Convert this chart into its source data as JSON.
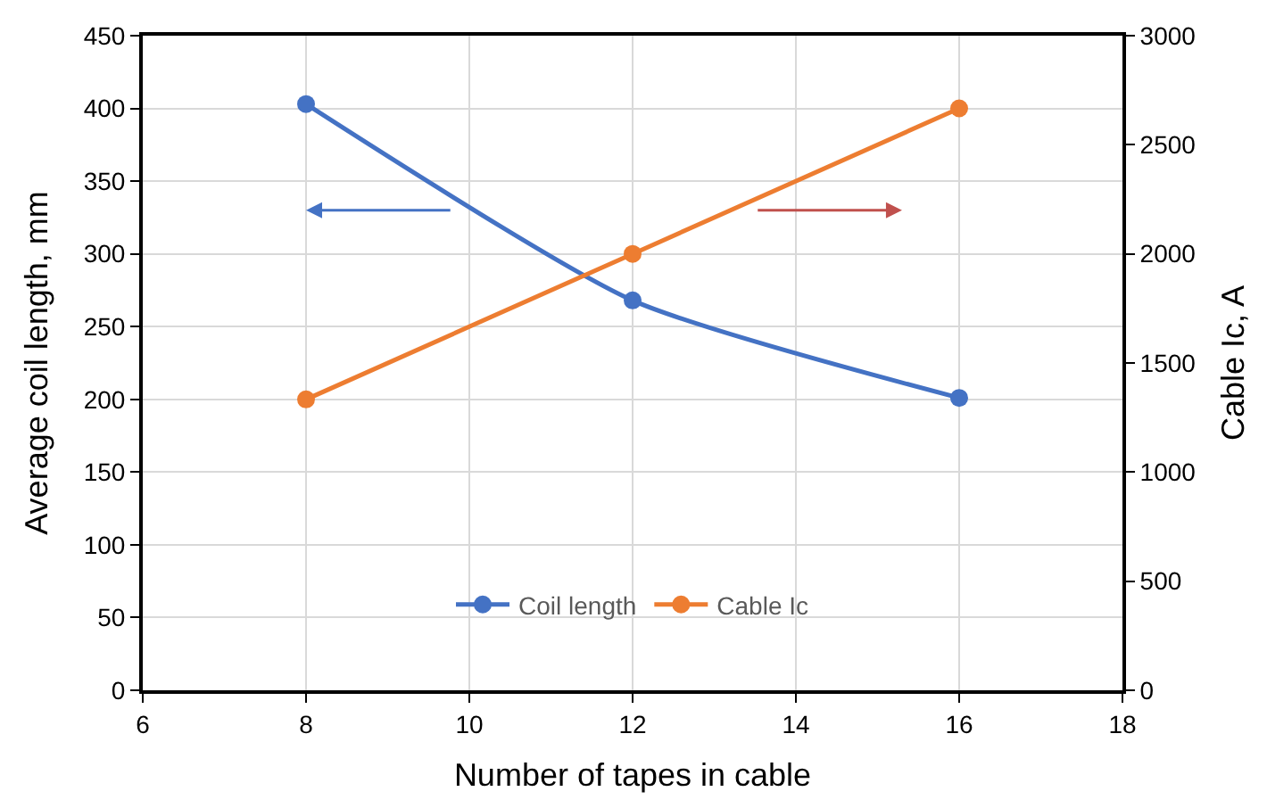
{
  "chart_data": {
    "type": "line",
    "xlabel": "Number of tapes in cable",
    "ylabel": "Average coil length, mm",
    "y2label": "Cable Ic, A",
    "x": [
      8,
      12,
      16
    ],
    "series": [
      {
        "name": "Coil length",
        "color": "#4472c4",
        "values": [
          403,
          268,
          201
        ]
      },
      {
        "name": "Cable Ic",
        "color": "#ed7d31",
        "values": [
          1333,
          2000,
          2667
        ],
        "axis": "y2"
      }
    ],
    "xlim": [
      6,
      18
    ],
    "xticks": [
      6,
      8,
      10,
      12,
      14,
      16,
      18
    ],
    "ylim": [
      0,
      450
    ],
    "yticks": [
      0,
      50,
      100,
      150,
      200,
      250,
      300,
      350,
      400,
      450
    ],
    "y2lim": [
      0,
      3000
    ],
    "y2ticks": [
      0,
      500,
      1000,
      1500,
      2000,
      2500,
      3000
    ],
    "grid": true,
    "legend": "bottom",
    "marker": "circle",
    "line_style": "solid"
  }
}
